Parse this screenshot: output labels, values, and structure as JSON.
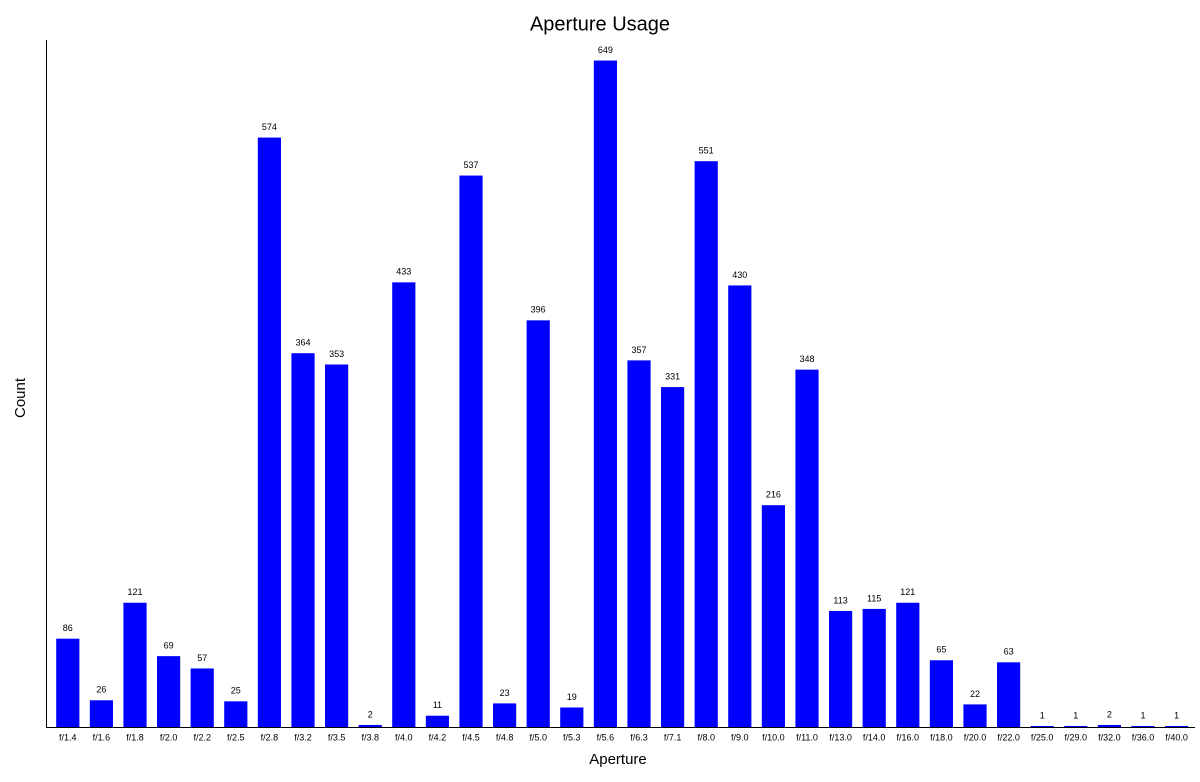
{
  "chart_data": {
    "type": "bar",
    "title": "Aperture Usage",
    "x_label": "Aperture",
    "y_label": "Count",
    "categories": [
      "f/1.4",
      "f/1.6",
      "f/1.8",
      "f/2.0",
      "f/2.2",
      "f/2.5",
      "f/2.8",
      "f/3.2",
      "f/3.5",
      "f/3.8",
      "f/4.0",
      "f/4.2",
      "f/4.5",
      "f/4.8",
      "f/5.0",
      "f/5.3",
      "f/5.6",
      "f/6.3",
      "f/7.1",
      "f/8.0",
      "f/9.0",
      "f/10.0",
      "f/11.0",
      "f/13.0",
      "f/14.0",
      "f/16.0",
      "f/18.0",
      "f/20.0",
      "f/22.0",
      "f/25.0",
      "f/29.0",
      "f/32.0",
      "f/36.0",
      "f/40.0"
    ],
    "values": [
      86,
      26,
      121,
      69,
      57,
      25,
      574,
      364,
      353,
      2,
      433,
      11,
      537,
      23,
      396,
      19,
      649,
      357,
      331,
      551,
      430,
      216,
      348,
      113,
      115,
      121,
      65,
      22,
      63,
      1,
      1,
      2,
      1,
      1
    ],
    "color": "#0000ff",
    "ylim": [
      0,
      669
    ],
    "grid": false
  }
}
